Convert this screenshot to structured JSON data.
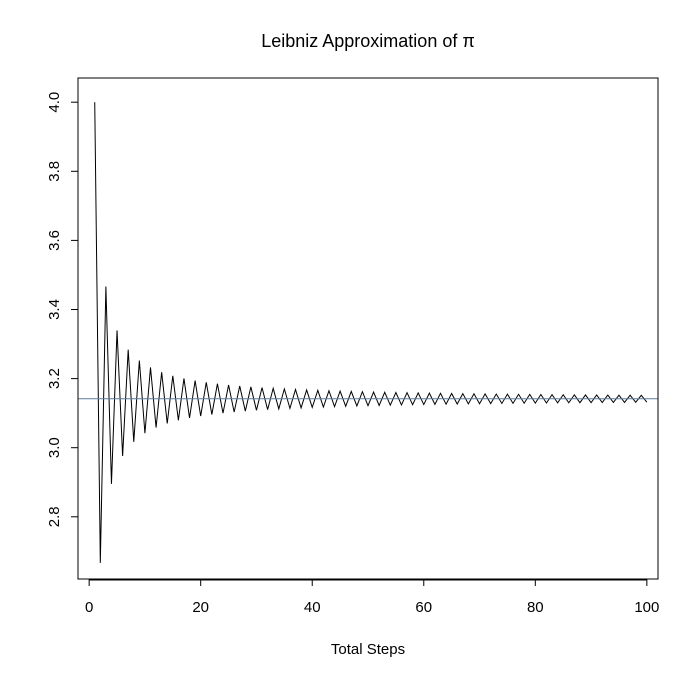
{
  "chart_data": {
    "type": "line",
    "title": "Leibniz Approximation of π",
    "xlabel": "Total Steps",
    "ylabel": "",
    "xlim": [
      -2,
      102
    ],
    "ylim": [
      2.62,
      4.07
    ],
    "x_ticks": [
      0,
      20,
      40,
      60,
      80,
      100
    ],
    "y_ticks": [
      2.8,
      3.0,
      3.2,
      3.4,
      3.6,
      3.8,
      4.0
    ],
    "grid": false,
    "legend": "none",
    "series": [
      {
        "formula": "partial sums of the Leibniz series 4*sum_{k=0}^{n-1} (-1)^k/(2k+1)",
        "x": "1..100",
        "color": "#000000"
      }
    ],
    "reference_line": {
      "orientation": "horizontal",
      "y": 3.14159,
      "color": "#5b7b9b"
    }
  }
}
